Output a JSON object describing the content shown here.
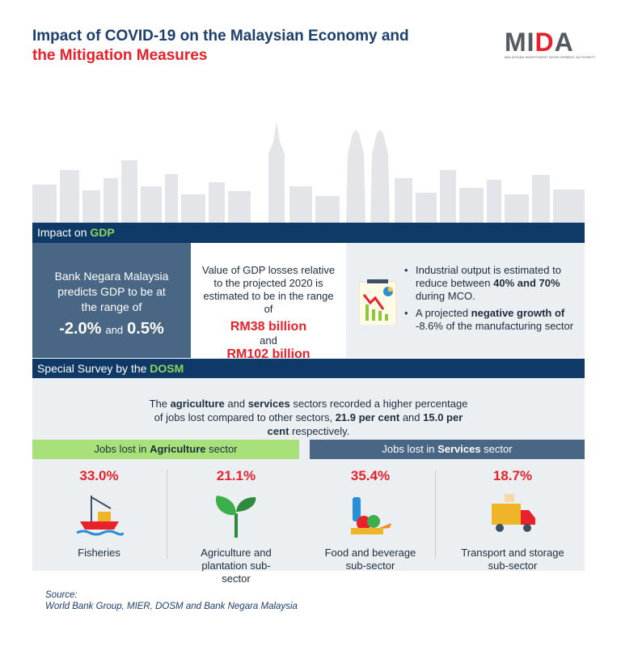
{
  "header": {
    "title_line1": "Impact of COVID-19 on the Malaysian Economy and",
    "title_line2": "the Mitigation Measures",
    "logo_text": "MIDA",
    "logo_subtitle": "MALAYSIAN INVESTMENT DEVELOPMENT AUTHORITY"
  },
  "colors": {
    "navy": "#0f3a68",
    "red": "#e8212a",
    "green": "#a8e07a",
    "slate": "#4a6685"
  },
  "gdp": {
    "header_prefix": "Impact on ",
    "header_highlight": "GDP",
    "bnm_text": "Bank Negara Malaysia predicts GDP to be at the range of",
    "low": "-2.0%",
    "and": "and",
    "high": "0.5%",
    "loss_text": "Value of GDP losses relative to the projected 2020 is estimated to be in the range of",
    "loss_low": "RM38 billion",
    "loss_and": "and",
    "loss_high": "RM102 billion",
    "bullet1": {
      "pre": "Industrial output is estimated to reduce between ",
      "b1": "40%",
      "mid": " and ",
      "b2": "70%",
      "post": " during MCO."
    },
    "bullet2": {
      "pre": "A projected ",
      "b1": "negative growth of",
      "post": " -8.6% of the manufacturing sector"
    }
  },
  "survey": {
    "header_prefix": "Special Survey by the ",
    "header_highlight": "DOSM",
    "intro": {
      "t1": "The ",
      "b1": "agriculture",
      "t2": " and ",
      "b2": "services",
      "t3": " sectors recorded a higher percentage of jobs lost compared to other sectors, ",
      "b3": "21.9 per cent",
      "t4": " and ",
      "b4": "15.0 per cent",
      "t5": " respectively."
    },
    "agri_header": {
      "pre": "Jobs lost in ",
      "b": "Agriculture",
      "post": " sector"
    },
    "serv_header": {
      "pre": "Jobs lost in ",
      "b": "Services",
      "post": " sector"
    },
    "items": [
      {
        "pct": "33.0%",
        "label": "Fisheries"
      },
      {
        "pct": "21.1%",
        "label": "Agriculture and plantation sub-sector"
      },
      {
        "pct": "35.4%",
        "label": "Food and beverage sub-sector"
      },
      {
        "pct": "18.7%",
        "label": "Transport and storage sub-sector"
      }
    ]
  },
  "source": {
    "label": "Source:",
    "text": "World Bank Group, MIER, DOSM and Bank Negara Malaysia"
  }
}
